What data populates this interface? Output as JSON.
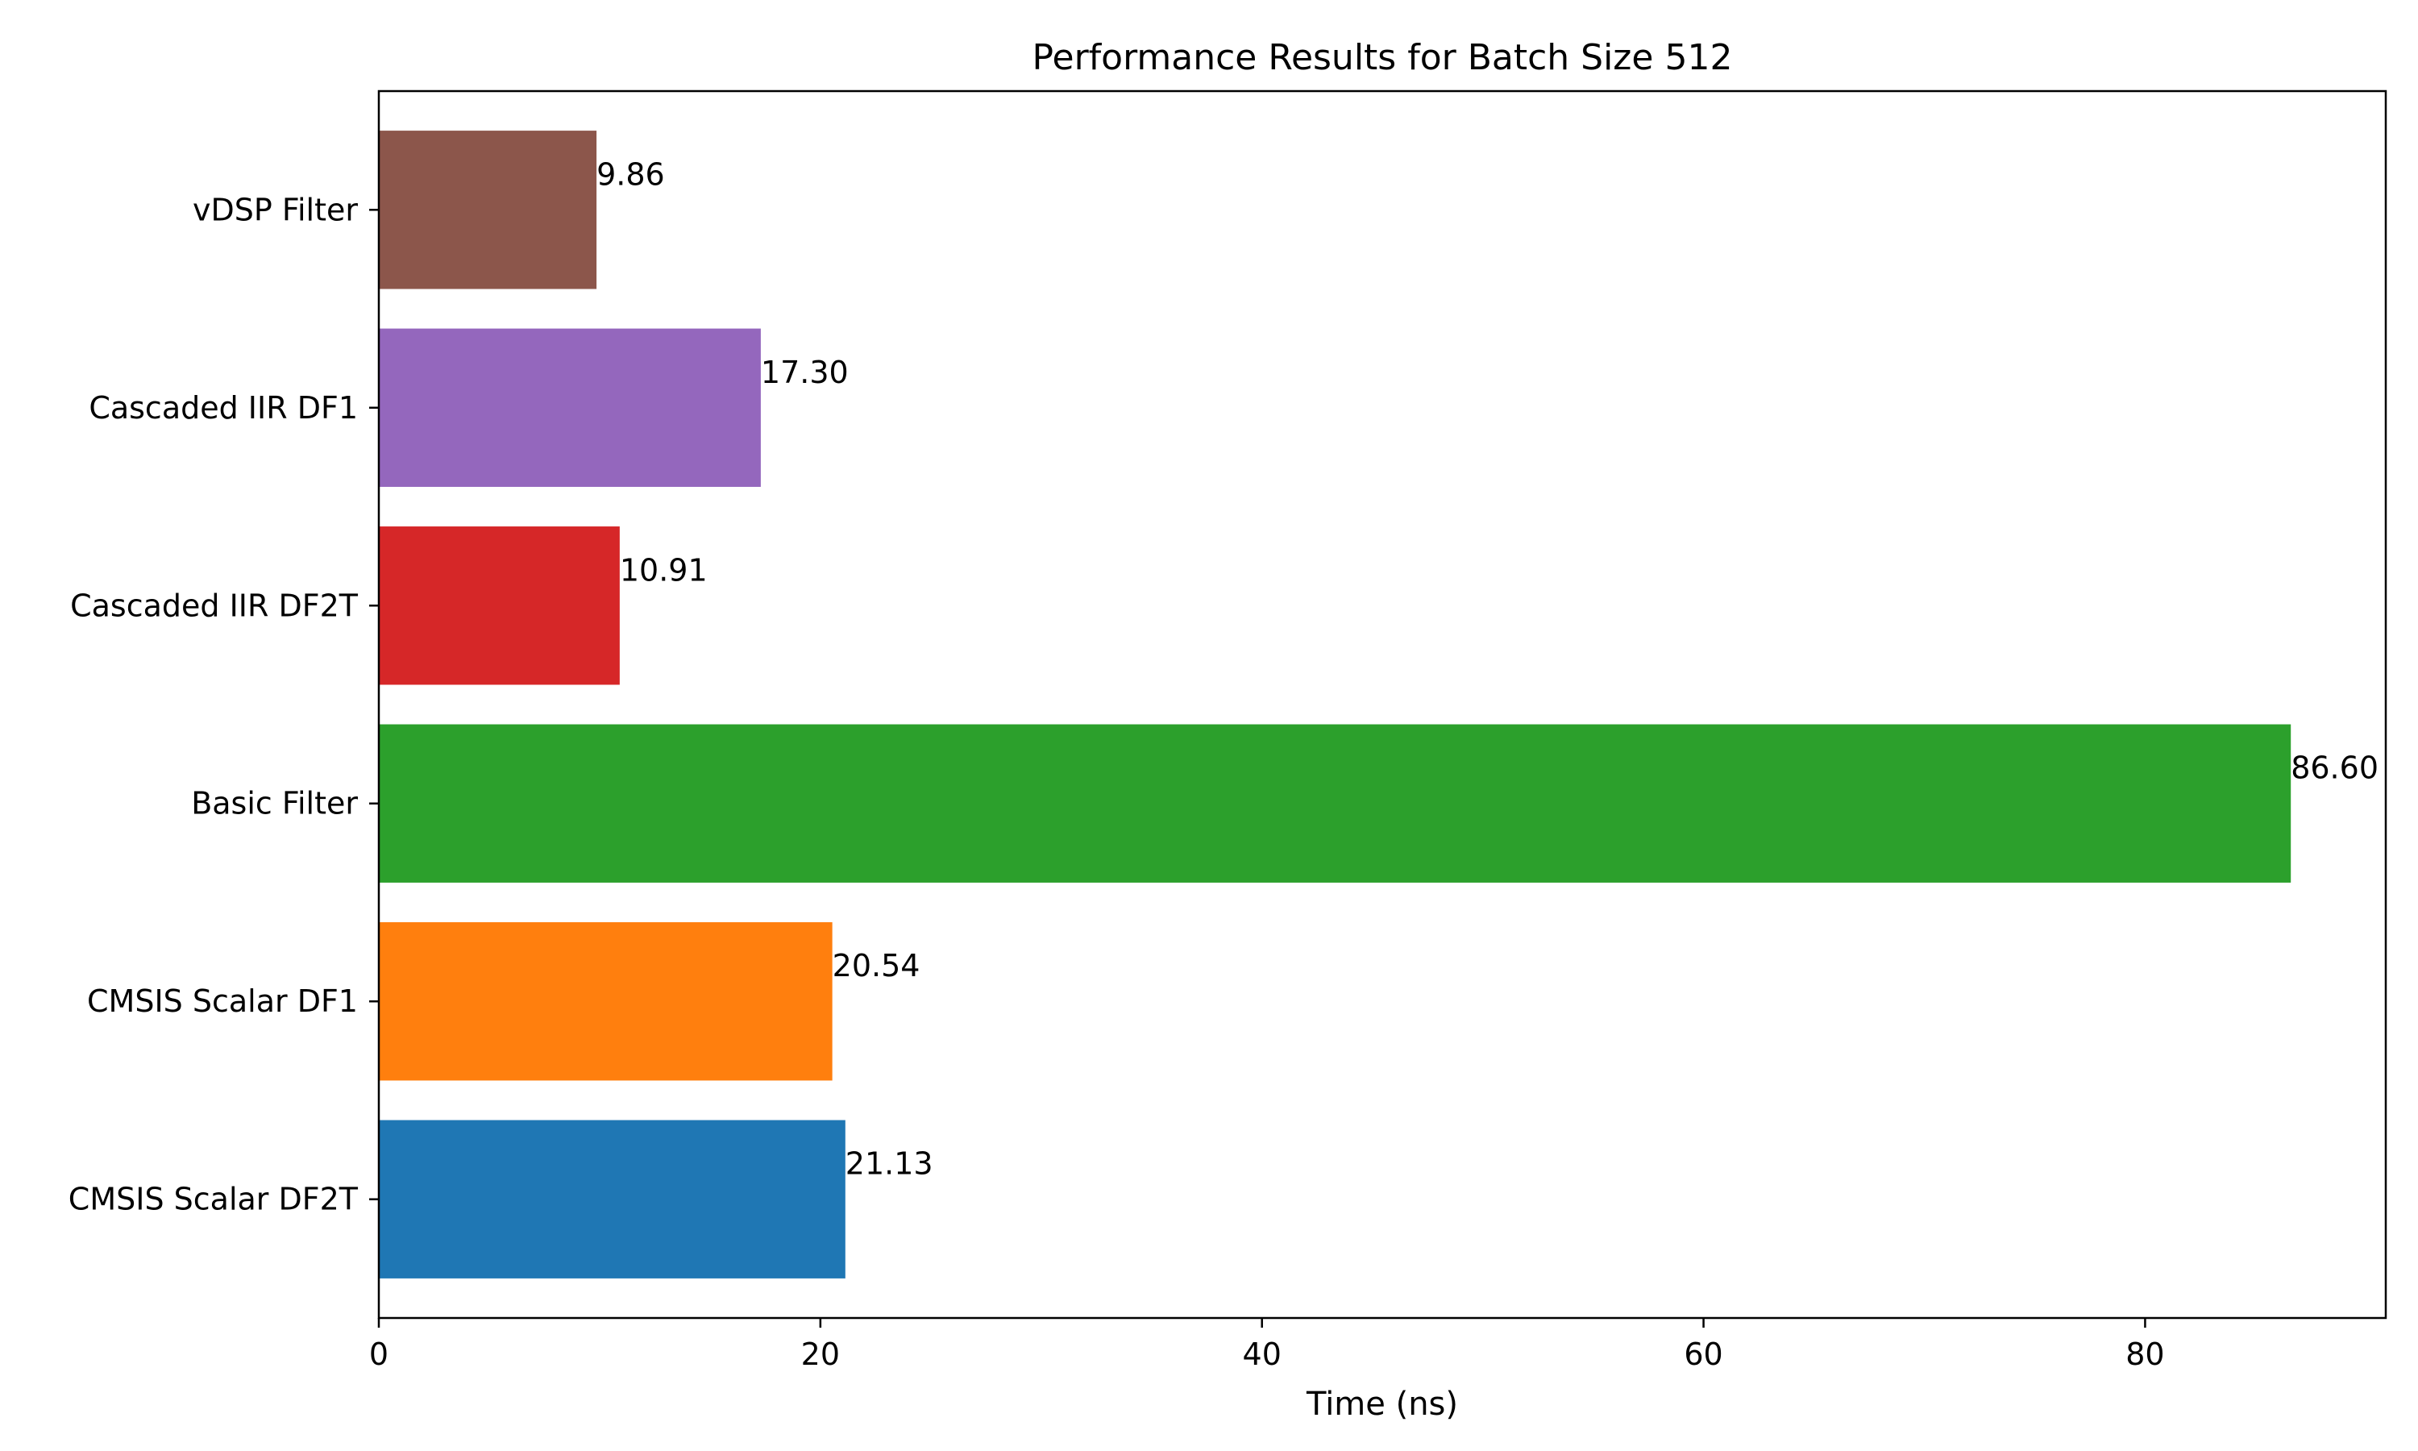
{
  "chart_data": {
    "type": "bar",
    "orientation": "horizontal",
    "title": "Performance Results for Batch Size 512",
    "xlabel": "Time (ns)",
    "ylabel": "",
    "xlim": [
      0,
      90.9
    ],
    "xticks": [
      0,
      20,
      40,
      60,
      80
    ],
    "grid": false,
    "legend": "none",
    "categories": [
      "CMSIS Scalar DF2T",
      "CMSIS Scalar DF1",
      "Basic Filter",
      "Cascaded IIR DF2T",
      "Cascaded IIR DF1",
      "vDSP Filter"
    ],
    "values": [
      21.13,
      20.54,
      86.6,
      10.91,
      17.3,
      9.86
    ],
    "value_labels": [
      "21.13",
      "20.54",
      "86.60",
      "10.91",
      "17.30",
      "9.86"
    ],
    "colors": [
      "#1f77b4",
      "#ff7f0e",
      "#2ca02c",
      "#d62728",
      "#9467bd",
      "#8c564b"
    ]
  }
}
